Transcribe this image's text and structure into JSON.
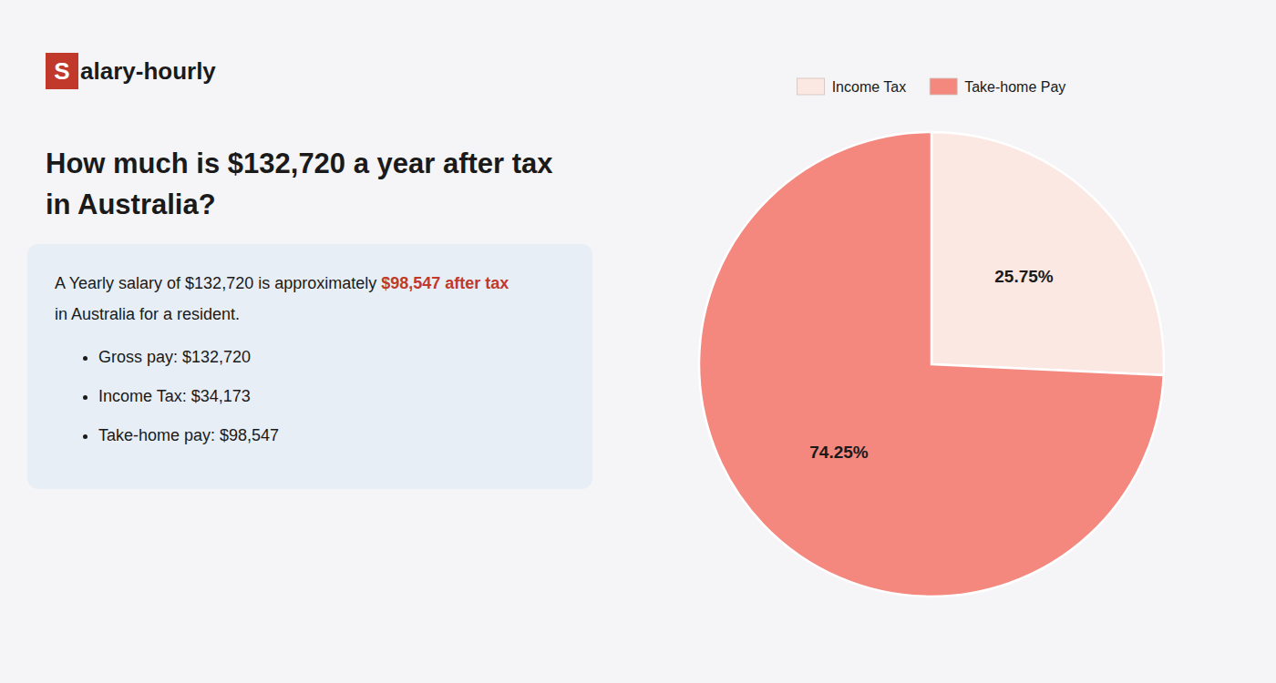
{
  "chart_data": {
    "type": "pie",
    "title": "How much is $132,720 a year after tax in Australia?",
    "categories": [
      "Income Tax",
      "Take-home Pay"
    ],
    "values": [
      25.75,
      74.25
    ],
    "value_labels": [
      "25.75%",
      "74.25%"
    ],
    "colors": [
      "#fce8e2",
      "#f4877e"
    ],
    "data_labels": true,
    "legend": "top",
    "annotations": [
      {
        "text": "S",
        "color": "#c0392b"
      },
      {
        "text": "alary-hourly",
        "color": "#1a1a1a"
      },
      {
        "text": "A Yearly salary of $132,720 is approximately ",
        "color": "#1a1a1a"
      },
      {
        "text": "$98,547 after tax",
        "color": "#c0392b"
      },
      {
        "text": "in Australia for a resident.",
        "color": "#1a1a1a"
      },
      {
        "text": "Gross pay: $132,720",
        "color": "#1a1a1a"
      },
      {
        "text": "Income Tax: $34,173",
        "color": "#1a1a1a"
      },
      {
        "text": "Take-home pay: $98,547",
        "color": "#1a1a1a"
      }
    ]
  }
}
